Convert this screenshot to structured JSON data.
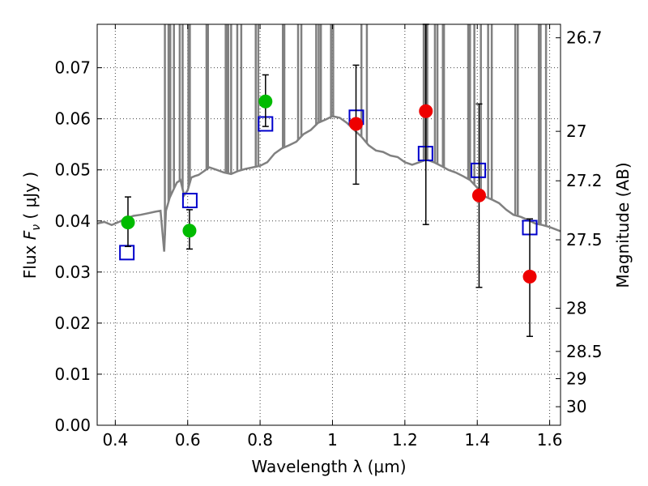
{
  "chart_data": {
    "type": "scatter",
    "title": "",
    "xlabel": "Wavelength  λ (μm)",
    "ylabel": "Flux  F_ν  ( μJy )",
    "ylabel_parts": {
      "prefix": "Flux  ",
      "symbol": "F",
      "subscript": "ν",
      "suffix": "  ( μJy )"
    },
    "y2label": "Magnitude (AB)",
    "xlim": [
      0.35,
      1.63
    ],
    "ylim": [
      0.0,
      0.0785
    ],
    "grid": true,
    "xticks": [
      0.4,
      0.6,
      0.8,
      1.0,
      1.2,
      1.4,
      1.6
    ],
    "xtick_labels": [
      "0.4",
      "0.6",
      "0.8",
      "1",
      "1.2",
      "1.4",
      "1.6"
    ],
    "yticks": [
      0.0,
      0.01,
      0.02,
      0.03,
      0.04,
      0.05,
      0.06,
      0.07
    ],
    "ytick_labels": [
      "0.00",
      "0.01",
      "0.02",
      "0.03",
      "0.04",
      "0.05",
      "0.06",
      "0.07"
    ],
    "y2ticks": [
      {
        "label": "26.7",
        "mag": 26.7
      },
      {
        "label": "27",
        "mag": 27.0
      },
      {
        "label": "27.2",
        "mag": 27.2
      },
      {
        "label": "27.5",
        "mag": 27.5
      },
      {
        "label": "28",
        "mag": 28.0
      },
      {
        "label": "28.5",
        "mag": 28.5
      },
      {
        "label": "29",
        "mag": 29.0
      },
      {
        "label": "30",
        "mag": 30.0
      }
    ],
    "series": [
      {
        "kind": "line",
        "color": "#808080",
        "x": [
          0.35,
          0.37,
          0.39,
          0.41,
          0.43,
          0.45,
          0.47,
          0.49,
          0.51,
          0.525,
          0.535,
          0.54,
          0.55,
          0.56,
          0.57,
          0.58,
          0.59,
          0.6,
          0.61,
          0.62,
          0.63,
          0.64,
          0.66,
          0.68,
          0.7,
          0.72,
          0.74,
          0.76,
          0.78,
          0.8,
          0.82,
          0.84,
          0.86,
          0.88,
          0.9,
          0.92,
          0.94,
          0.96,
          0.98,
          1.0,
          1.02,
          1.04,
          1.06,
          1.08,
          1.1,
          1.12,
          1.14,
          1.16,
          1.18,
          1.2,
          1.22,
          1.24,
          1.26,
          1.28,
          1.3,
          1.32,
          1.34,
          1.36,
          1.38,
          1.4,
          1.42,
          1.44,
          1.46,
          1.48,
          1.5,
          1.52,
          1.54,
          1.56,
          1.58,
          1.6,
          1.63
        ],
        "y": [
          0.0395,
          0.0398,
          0.0392,
          0.0398,
          0.0405,
          0.041,
          0.0412,
          0.0415,
          0.0418,
          0.042,
          0.034,
          0.042,
          0.0445,
          0.046,
          0.0475,
          0.048,
          0.045,
          0.046,
          0.0485,
          0.0488,
          0.049,
          0.0495,
          0.0505,
          0.05,
          0.0495,
          0.0492,
          0.0498,
          0.0502,
          0.0505,
          0.0508,
          0.0515,
          0.0532,
          0.0542,
          0.0548,
          0.0555,
          0.057,
          0.0578,
          0.0592,
          0.0598,
          0.0605,
          0.0602,
          0.0592,
          0.0578,
          0.0565,
          0.0548,
          0.0538,
          0.0535,
          0.0528,
          0.0525,
          0.0515,
          0.051,
          0.0515,
          0.052,
          0.0515,
          0.0508,
          0.05,
          0.0495,
          0.0488,
          0.048,
          0.0465,
          0.0448,
          0.0442,
          0.0435,
          0.0422,
          0.0412,
          0.0408,
          0.0402,
          0.0395,
          0.0392,
          0.0388,
          0.038
        ]
      },
      {
        "kind": "spikes",
        "color": "#808080",
        "x": [
          0.537,
          0.547,
          0.552,
          0.562,
          0.578,
          0.586,
          0.602,
          0.606,
          0.652,
          0.656,
          0.705,
          0.708,
          0.712,
          0.72,
          0.737,
          0.748,
          0.788,
          0.795,
          0.863,
          0.867,
          0.905,
          0.914,
          0.955,
          0.962,
          0.968,
          0.996,
          1.002,
          1.08,
          1.095,
          1.252,
          1.256,
          1.26,
          1.262,
          1.283,
          1.29,
          1.305,
          1.308,
          1.375,
          1.38,
          1.392,
          1.41,
          1.43,
          1.44,
          1.505,
          1.512,
          1.57,
          1.575,
          1.59
        ],
        "y": [
          0.0785,
          0.0785,
          0.0785,
          0.0785,
          0.0785,
          0.0785,
          0.0785,
          0.0785,
          0.0785,
          0.0785,
          0.0785,
          0.0785,
          0.0785,
          0.0785,
          0.0785,
          0.0785,
          0.0785,
          0.0785,
          0.0785,
          0.0785,
          0.0785,
          0.0785,
          0.0785,
          0.0785,
          0.0785,
          0.0785,
          0.0785,
          0.0785,
          0.0785,
          0.0785,
          0.0785,
          0.0785,
          0.0785,
          0.0785,
          0.0785,
          0.0785,
          0.0785,
          0.0785,
          0.0785,
          0.0785,
          0.0785,
          0.0785,
          0.0785,
          0.0785,
          0.0785,
          0.0785,
          0.0785,
          0.0785
        ]
      },
      {
        "kind": "open-square",
        "color": "#0000cc",
        "x": [
          0.432,
          0.606,
          0.815,
          1.066,
          1.257,
          1.403,
          1.545
        ],
        "y": [
          0.0338,
          0.044,
          0.059,
          0.0603,
          0.0532,
          0.0499,
          0.0387
        ]
      },
      {
        "kind": "point-errorbar",
        "color": "#00bb00",
        "x": [
          0.435,
          0.605,
          0.815
        ],
        "y": [
          0.0397,
          0.0381,
          0.0634
        ],
        "yerr_low": [
          0.035,
          0.0345,
          0.0585
        ],
        "yerr_high": [
          0.0447,
          0.0422,
          0.0686
        ]
      },
      {
        "kind": "point-errorbar",
        "color": "#ee0000",
        "x": [
          1.065,
          1.258,
          1.405,
          1.545
        ],
        "y": [
          0.059,
          0.0615,
          0.045,
          0.0291
        ],
        "yerr_low": [
          0.0472,
          0.0393,
          0.027,
          0.0174
        ],
        "yerr_high": [
          0.0705,
          0.0785,
          0.0629,
          0.0404
        ]
      }
    ]
  }
}
